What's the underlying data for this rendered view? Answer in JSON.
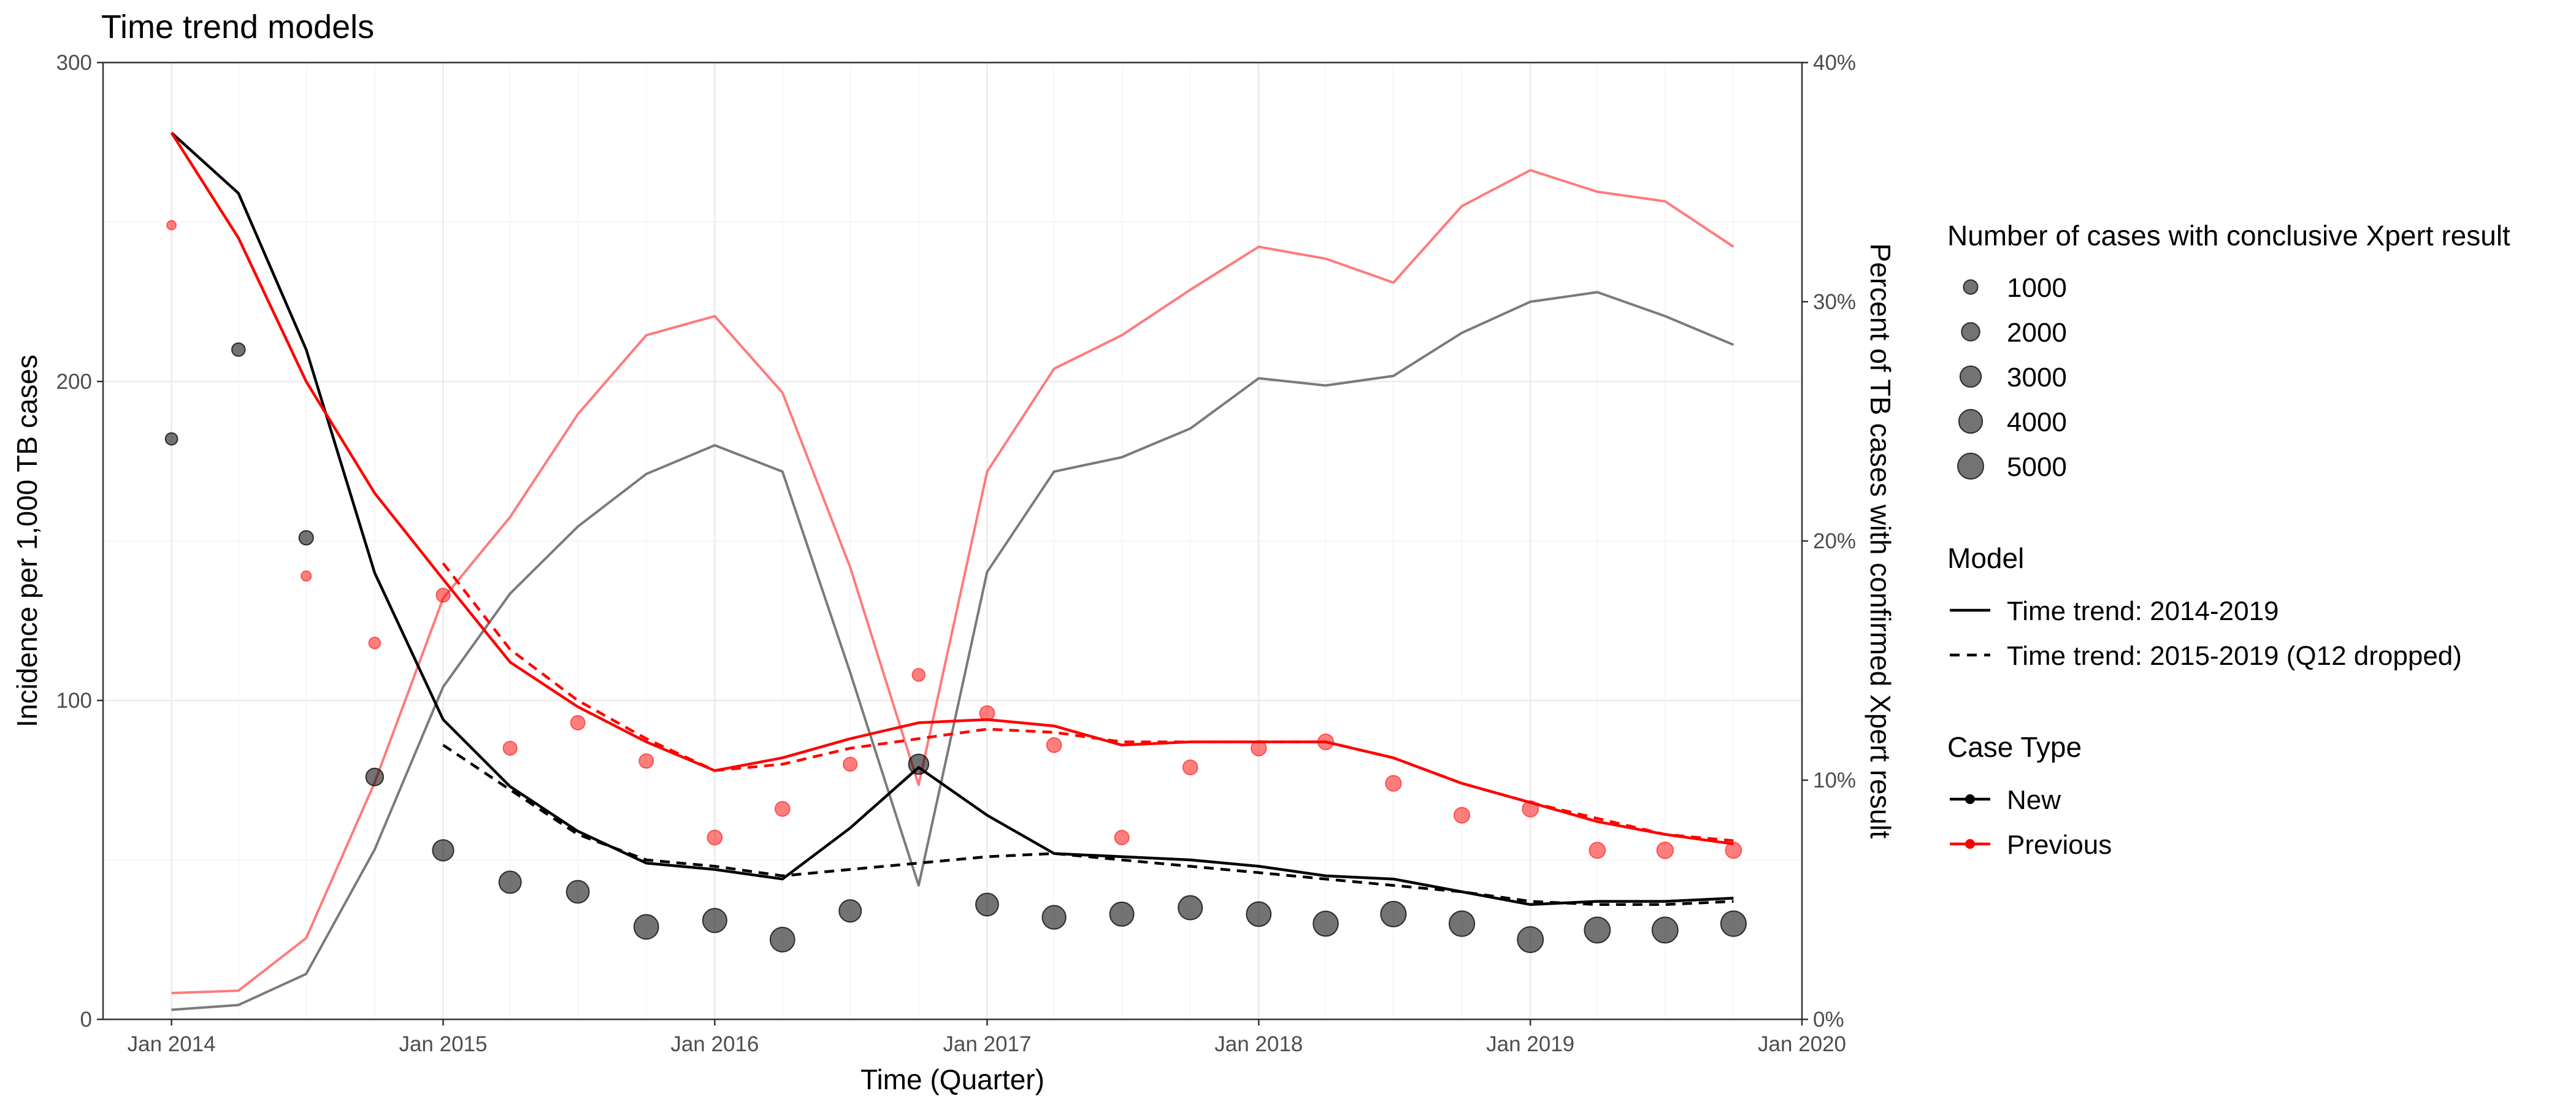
{
  "chart_data": {
    "type": "line",
    "title": "Time trend models",
    "xlabel": "Time (Quarter)",
    "ylabel": "Incidence per 1,000 TB cases",
    "ylabel_right": "Percent of TB cases with confirmed Xpert result",
    "xlim": [
      "2013-10-01",
      "2020-01-01"
    ],
    "ylim": [
      0,
      300
    ],
    "ylim_right": [
      0,
      40
    ],
    "x_ticks": [
      {
        "date": "2014-01-01",
        "label": "Jan 2014"
      },
      {
        "date": "2015-01-01",
        "label": "Jan 2015"
      },
      {
        "date": "2016-01-01",
        "label": "Jan 2016"
      },
      {
        "date": "2017-01-01",
        "label": "Jan 2017"
      },
      {
        "date": "2018-01-01",
        "label": "Jan 2018"
      },
      {
        "date": "2019-01-01",
        "label": "Jan 2019"
      },
      {
        "date": "2020-01-01",
        "label": "Jan 2020"
      }
    ],
    "y_ticks": [
      {
        "value": 0,
        "label": "0"
      },
      {
        "value": 100,
        "label": "100"
      },
      {
        "value": 200,
        "label": "200"
      },
      {
        "value": 300,
        "label": "300"
      }
    ],
    "y_ticks_right": [
      {
        "value": 0,
        "label": "0%"
      },
      {
        "value": 10,
        "label": "10%"
      },
      {
        "value": 20,
        "label": "20%"
      },
      {
        "value": 30,
        "label": "30%"
      },
      {
        "value": 40,
        "label": "40%"
      }
    ],
    "grid": true,
    "legend_position": "right",
    "colors": {
      "New": "#000000",
      "Previous": "#ff0000"
    },
    "x": [
      "2014-01-01",
      "2014-04-01",
      "2014-07-01",
      "2014-10-01",
      "2015-01-01",
      "2015-04-01",
      "2015-07-01",
      "2015-10-01",
      "2016-01-01",
      "2016-04-01",
      "2016-07-01",
      "2016-10-01",
      "2017-01-01",
      "2017-04-01",
      "2017-07-01",
      "2017-10-01",
      "2018-01-01",
      "2018-04-01",
      "2018-07-01",
      "2018-10-01",
      "2019-01-01",
      "2019-04-01",
      "2019-07-01",
      "2019-10-01"
    ],
    "points": {
      "New": {
        "incidence": [
          182,
          210,
          151,
          76,
          53,
          43,
          40,
          29,
          31,
          25,
          34,
          80,
          36,
          32,
          33,
          35,
          33,
          30,
          33,
          30,
          25,
          28,
          28,
          30
        ],
        "cases": [
          600,
          800,
          1000,
          1800,
          3000,
          3400,
          3600,
          4400,
          4200,
          4400,
          3400,
          2600,
          3600,
          4000,
          4200,
          4200,
          4400,
          4600,
          4800,
          4800,
          5000,
          5000,
          5000,
          4800
        ]
      },
      "Previous": {
        "incidence": [
          249,
          null,
          139,
          118,
          133,
          85,
          93,
          81,
          57,
          66,
          80,
          108,
          96,
          86,
          57,
          79,
          85,
          87,
          74,
          64,
          66,
          53,
          53,
          53
        ],
        "cases": [
          200,
          null,
          300,
          500,
          900,
          900,
          1000,
          1000,
          1100,
          1100,
          900,
          700,
          1100,
          1100,
          1000,
          1100,
          1200,
          1300,
          1300,
          1300,
          1400,
          1400,
          1500,
          1400
        ]
      }
    },
    "percent_lines": {
      "New": [
        0.4,
        0.6,
        1.9,
        7.1,
        13.9,
        17.8,
        20.6,
        22.8,
        24.0,
        22.9,
        14.5,
        5.6,
        18.7,
        22.9,
        23.5,
        24.7,
        26.8,
        26.5,
        26.9,
        28.7,
        30.0,
        30.4,
        29.4,
        28.2
      ],
      "Previous": [
        1.1,
        1.2,
        3.4,
        9.9,
        17.6,
        21.0,
        25.3,
        28.6,
        29.4,
        26.2,
        18.9,
        9.8,
        22.9,
        27.2,
        28.6,
        30.5,
        32.3,
        31.8,
        30.8,
        34.0,
        35.5,
        34.6,
        34.2,
        32.3
      ]
    },
    "model_lines": {
      "New": {
        "Time trend: 2014-2019": [
          278,
          259,
          210,
          140,
          94,
          73,
          59,
          49,
          47,
          44,
          60,
          79,
          64,
          52,
          51,
          50,
          48,
          45,
          44,
          40,
          36,
          37,
          37,
          38
        ],
        "Time trend: 2015-2019 (Q12 dropped)": [
          null,
          null,
          null,
          null,
          86,
          72,
          58,
          50,
          48,
          45,
          47,
          49,
          51,
          52,
          50,
          48,
          46,
          44,
          42,
          40,
          37,
          36,
          36,
          37
        ]
      },
      "Previous": {
        "Time trend: 2014-2019": [
          278,
          245,
          200,
          165,
          138,
          112,
          98,
          87,
          78,
          82,
          88,
          93,
          94,
          92,
          86,
          87,
          87,
          87,
          82,
          74,
          68,
          62,
          58,
          55
        ],
        "Time trend: 2015-2019 (Q12 dropped)": [
          null,
          null,
          null,
          null,
          143,
          116,
          100,
          88,
          78,
          80,
          85,
          88,
          91,
          90,
          87,
          87,
          87,
          87,
          82,
          74,
          68,
          63,
          58,
          56
        ]
      }
    },
    "legend": {
      "size": {
        "title": "Number of cases with conclusive Xpert result",
        "items": [
          {
            "label": "1000",
            "value": 1000
          },
          {
            "label": "2000",
            "value": 2000
          },
          {
            "label": "3000",
            "value": 3000
          },
          {
            "label": "4000",
            "value": 4000
          },
          {
            "label": "5000",
            "value": 5000
          }
        ]
      },
      "model": {
        "title": "Model",
        "items": [
          {
            "label": "Time trend: 2014-2019",
            "linetype": "solid"
          },
          {
            "label": "Time trend: 2015-2019 (Q12 dropped)",
            "linetype": "dashed"
          }
        ]
      },
      "case_type": {
        "title": "Case Type",
        "items": [
          {
            "label": "New",
            "color": "#000000"
          },
          {
            "label": "Previous",
            "color": "#ff0000"
          }
        ]
      }
    }
  }
}
